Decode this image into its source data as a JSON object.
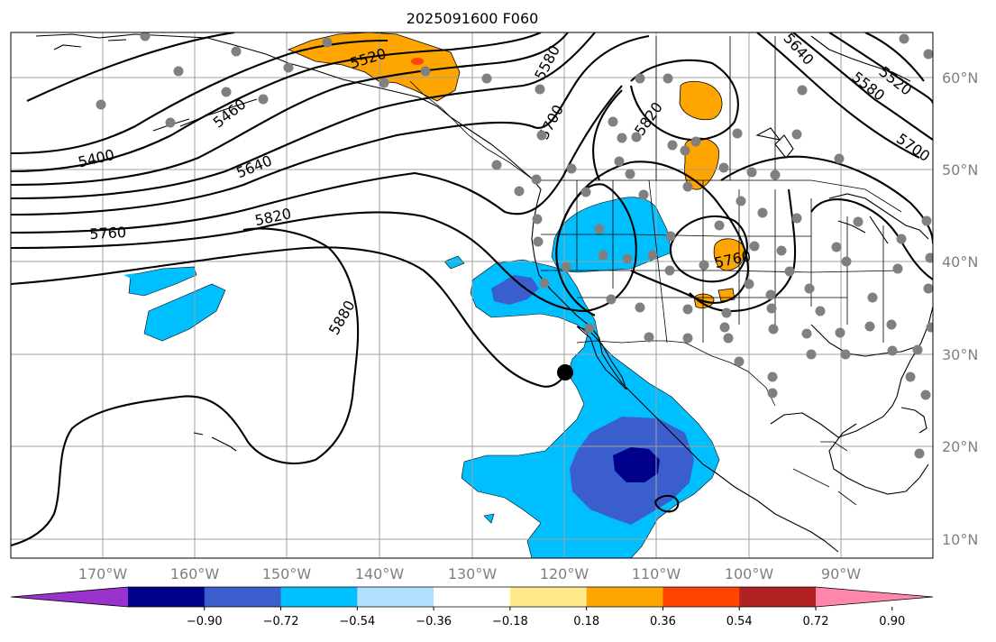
{
  "title": "2025091600 F060",
  "lon_labels": [
    "170°W",
    "160°W",
    "150°W",
    "140°W",
    "130°W",
    "120°W",
    "110°W",
    "100°W",
    "90°W"
  ],
  "lat_labels": [
    "60°N",
    "50°N",
    "40°N",
    "30°N",
    "20°N",
    "10°N"
  ],
  "contour_labels": [
    "5400",
    "5460",
    "5520",
    "5580",
    "5640",
    "5640",
    "5700",
    "5700",
    "5760",
    "5760",
    "5820",
    "5820",
    "5880",
    "5520",
    "5580"
  ],
  "colorbar": {
    "ticks": [
      "−0.90",
      "−0.72",
      "−0.54",
      "−0.36",
      "−0.18",
      "0.18",
      "0.36",
      "0.54",
      "0.72",
      "0.90"
    ],
    "colors": [
      "#9932cc",
      "#00008b",
      "#3a5fcd",
      "#00bfff",
      "#b0e2ff",
      "#ffffff",
      "#ffeb8c",
      "#ffa500",
      "#ff4500",
      "#b22222",
      "#ff88aa"
    ]
  },
  "colors": {
    "light_blue": "#b0e2ff",
    "blue": "#00bfff",
    "royal_blue": "#3a5fcd",
    "navy": "#00008b",
    "orange": "#ffa500",
    "red_orange": "#ff4500",
    "station_gray": "#808080"
  }
}
